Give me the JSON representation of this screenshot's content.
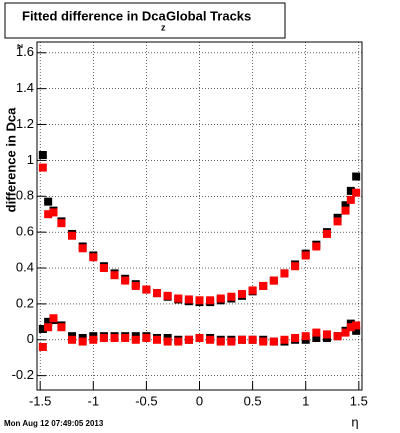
{
  "chart_data": {
    "type": "scatter",
    "title": {
      "main": "Fitted difference in Dca",
      "subscript": "z",
      "rest": "Global Tracks"
    },
    "y_label": {
      "main": "difference in Dca",
      "subscript": "z"
    },
    "x_label": "η",
    "timestamp": "Mon Aug 12 07:49:05 2013",
    "x": [
      -1.475,
      -1.425,
      -1.375,
      -1.3,
      -1.2,
      -1.1,
      -1.0,
      -0.9,
      -0.8,
      -0.7,
      -0.6,
      -0.5,
      -0.4,
      -0.3,
      -0.2,
      -0.1,
      0,
      0.1,
      0.2,
      0.3,
      0.4,
      0.5,
      0.6,
      0.7,
      0.8,
      0.9,
      1.0,
      1.1,
      1.2,
      1.3,
      1.375,
      1.425,
      1.475
    ],
    "series": [
      {
        "color": "#000000",
        "values": [
          1.03,
          0.77,
          0.72,
          0.66,
          0.59,
          0.52,
          0.47,
          0.41,
          0.37,
          0.34,
          0.31,
          0.28,
          0.26,
          0.24,
          0.225,
          0.215,
          0.21,
          0.21,
          0.22,
          0.23,
          0.245,
          0.27,
          0.3,
          0.33,
          0.37,
          0.42,
          0.48,
          0.53,
          0.6,
          0.68,
          0.75,
          0.83,
          0.91
        ]
      },
      {
        "color": "#ff0000",
        "values": [
          0.96,
          0.7,
          0.71,
          0.65,
          0.58,
          0.51,
          0.46,
          0.4,
          0.36,
          0.33,
          0.3,
          0.28,
          0.26,
          0.245,
          0.23,
          0.225,
          0.22,
          0.22,
          0.23,
          0.24,
          0.255,
          0.275,
          0.3,
          0.33,
          0.37,
          0.41,
          0.47,
          0.52,
          0.59,
          0.66,
          0.72,
          0.78,
          0.82
        ]
      },
      {
        "color": "#000000",
        "values": [
          0.06,
          0.1,
          0.11,
          0.08,
          0.02,
          0.01,
          0.02,
          0.02,
          0.02,
          0.02,
          0.02,
          0.02,
          0.01,
          0.01,
          0.0,
          0.0,
          0.01,
          0.01,
          0.0,
          0.0,
          0.0,
          0.0,
          0.0,
          -0.01,
          -0.01,
          0.0,
          0.0,
          0.01,
          0.01,
          0.02,
          0.05,
          0.09,
          0.05
        ]
      },
      {
        "color": "#ff0000",
        "values": [
          -0.04,
          0.07,
          0.12,
          0.07,
          0.0,
          -0.01,
          0.0,
          0.01,
          0.01,
          0.01,
          0.0,
          0.01,
          0.0,
          -0.01,
          -0.01,
          0.0,
          0.01,
          0.0,
          -0.01,
          -0.01,
          0.0,
          0.0,
          -0.01,
          -0.01,
          0.0,
          0.01,
          0.02,
          0.04,
          0.03,
          0.02,
          0.04,
          0.07,
          0.08
        ]
      }
    ],
    "xlim": [
      -1.53,
      1.53
    ],
    "ylim": [
      -0.28,
      1.66
    ],
    "xticks": [
      -1.5,
      -1,
      -0.5,
      0,
      0.5,
      1,
      1.5
    ],
    "yticks": [
      -0.2,
      0,
      0.2,
      0.4,
      0.6,
      0.8,
      1,
      1.2,
      1.4,
      1.6
    ],
    "grid": true
  }
}
